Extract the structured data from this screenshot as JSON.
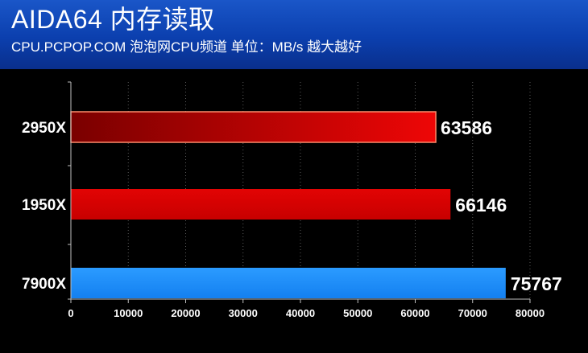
{
  "header": {
    "title": "AIDA64 内存读取",
    "subtitle": "CPU.PCPOP.COM 泡泡网CPU频道 单位：MB/s 越大越好"
  },
  "colors": {
    "header_bg": "#0b3fae",
    "background": "#000000",
    "bar_red": "#dc0000",
    "bar_dark_red": "#8b0000",
    "bar_blue": "#1e8fff",
    "text": "#ffffff"
  },
  "chart_data": {
    "type": "bar",
    "orientation": "horizontal",
    "title": "AIDA64 内存读取",
    "subtitle": "CPU.PCPOP.COM 泡泡网CPU频道 单位：MB/s 越大越好",
    "categories": [
      "2950X",
      "1950X",
      "7900X"
    ],
    "values": [
      63586,
      66146,
      75767
    ],
    "value_labels": [
      "63586",
      "66146",
      "75767"
    ],
    "bar_colors": [
      "gradient-dark-red",
      "red",
      "blue"
    ],
    "xlim": [
      0,
      80000
    ],
    "x_ticks": [
      "0",
      "10000",
      "20000",
      "30000",
      "40000",
      "50000",
      "60000",
      "70000",
      "80000"
    ],
    "grid": "vertical dotted",
    "legend": "none"
  }
}
